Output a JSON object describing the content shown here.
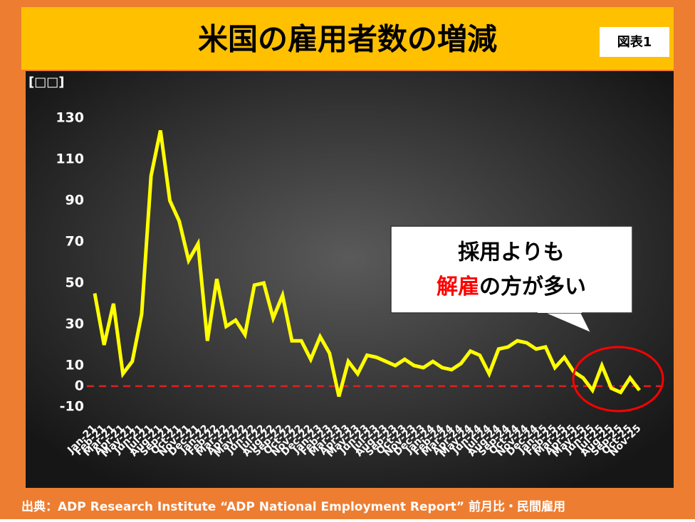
{
  "header": {
    "title": "米国の雇用者数の増減",
    "figure_label": "図表1"
  },
  "chart_data": {
    "type": "line",
    "y_label": "[□□]",
    "categories": [
      "Jan-21",
      "Feb-21",
      "Mar-21",
      "Apr-21",
      "May-21",
      "Jun-21",
      "Jul-21",
      "Aug-21",
      "Sep-21",
      "Oct-21",
      "Nov-21",
      "Dec-21",
      "Jan-22",
      "Feb-22",
      "Mar-22",
      "Apr-22",
      "May-22",
      "Jun-22",
      "Jul-22",
      "Aug-22",
      "Sep-22",
      "Oct-22",
      "Nov-22",
      "Dec-22",
      "Jan-23",
      "Feb-23",
      "Mar-23",
      "Apr-23",
      "May-23",
      "Jun-23",
      "Jul-23",
      "Aug-23",
      "Sep-23",
      "Oct-23",
      "Nov-23",
      "Dec-23",
      "Jan-24",
      "Feb-24",
      "Mar-24",
      "Apr-24",
      "May-24",
      "Jun-24",
      "Jul-24",
      "Aug-24",
      "Sep-24",
      "Oct-24",
      "Nov-24",
      "Dec-24",
      "Jan-25",
      "Feb-25",
      "Mar-25",
      "Apr-25",
      "May-25",
      "Jun-25",
      "Jul-25",
      "Aug-25",
      "Sep-25",
      "Oct-25",
      "Nov-25"
    ],
    "series": [
      {
        "color": "#ffff00",
        "values": [
          45,
          20,
          40,
          6,
          12,
          35,
          102,
          124,
          90,
          80,
          61,
          69,
          22,
          52,
          29,
          32,
          25,
          49,
          50,
          33,
          44,
          22,
          22,
          13,
          24,
          16,
          -5,
          12,
          6,
          15,
          14,
          12,
          10,
          13,
          10,
          9,
          12,
          9,
          8,
          11,
          17,
          15,
          6,
          18,
          19,
          22,
          21,
          18,
          19,
          9,
          14,
          7,
          4,
          -2,
          10,
          -1,
          -3,
          4,
          -2
        ]
      }
    ],
    "ylim": [
      -10,
      130
    ],
    "yticks": [
      130,
      110,
      90,
      70,
      50,
      30,
      10,
      0,
      -10
    ],
    "baseline": {
      "value": 0,
      "color": "#e02020",
      "dashed": true
    },
    "highlight_color": "#ff0000",
    "callout": {
      "line1": "採用よりも",
      "line2_highlight": "解雇",
      "line2_rest": "の方が多い"
    }
  },
  "source": "出典：ADP Research Institute “ADP National Employment Report” 前月比・民間雇用"
}
